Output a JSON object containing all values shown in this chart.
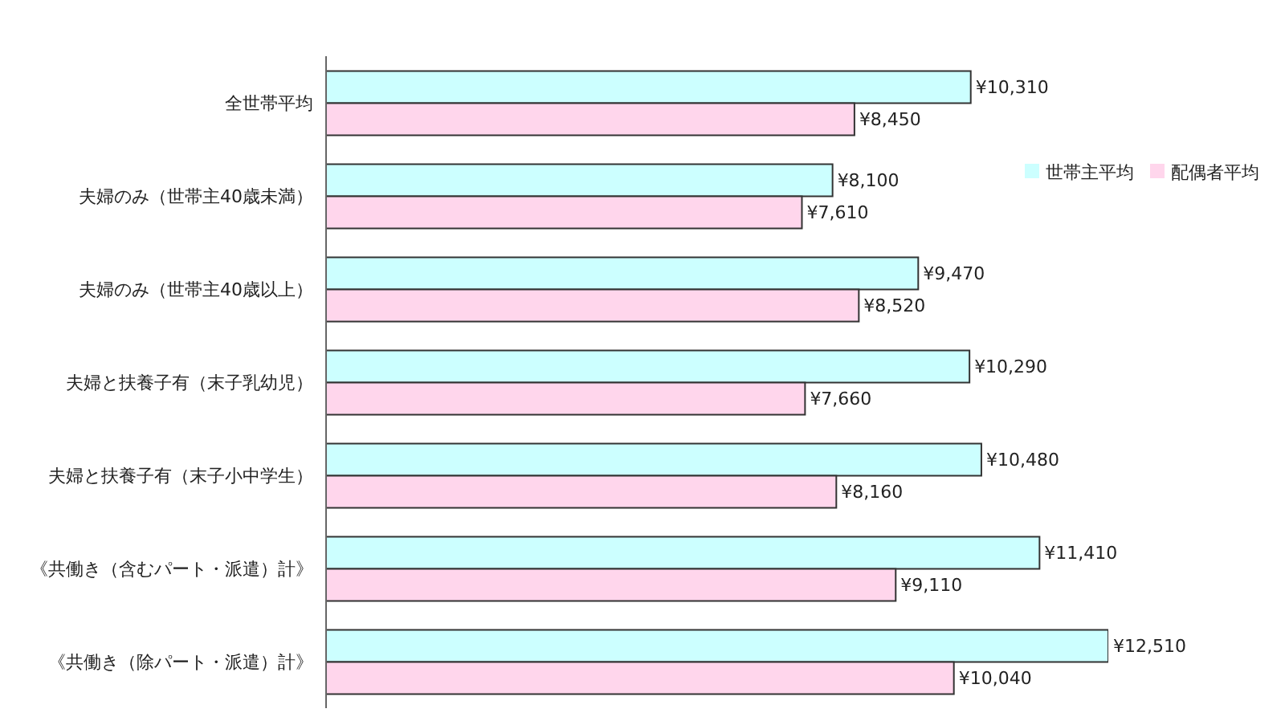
{
  "chart_data": {
    "type": "bar",
    "orientation": "horizontal",
    "categories": [
      "全世帯平均",
      "夫婦のみ（世帯主40歳未満）",
      "夫婦のみ（世帯主40歳以上）",
      "夫婦と扶養子有（末子乳幼児）",
      "夫婦と扶養子有（末子小中学生）",
      "《共働き（含むパート・派遣）計》",
      "《共働き（除パート・派遣）計》"
    ],
    "series": [
      {
        "name": "世帯主平均",
        "color": "#ccffff",
        "values": [
          10310,
          8100,
          9470,
          10290,
          10480,
          11410,
          12510
        ],
        "value_labels": [
          "¥10,310",
          "¥8,100",
          "¥9,470",
          "¥10,290",
          "¥10,480",
          "¥11,410",
          "¥12,510"
        ]
      },
      {
        "name": "配偶者平均",
        "color": "#ffd6ec",
        "values": [
          8450,
          7610,
          8520,
          7660,
          8160,
          9110,
          10040
        ],
        "value_labels": [
          "¥8,450",
          "¥7,610",
          "¥8,520",
          "¥7,660",
          "¥8,160",
          "¥9,110",
          "¥10,040"
        ]
      }
    ],
    "legend": "right",
    "grid": false
  }
}
